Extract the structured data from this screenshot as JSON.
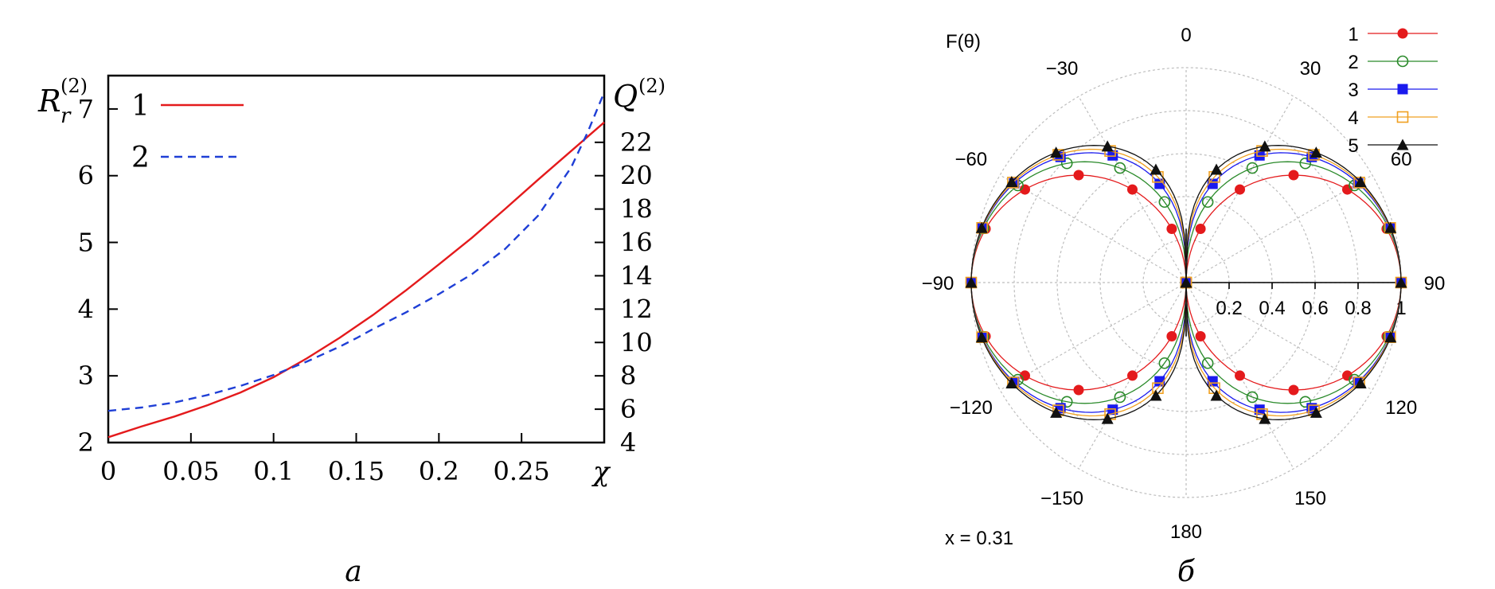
{
  "chart_data": [
    {
      "type": "line",
      "panel_label": "а",
      "xlabel": "χ",
      "ylabel_left": "R",
      "ylabel_left_sub": "r",
      "ylabel_left_sup": "(2)",
      "ylabel_right": "Q",
      "ylabel_right_sup": "(2)",
      "xlim": [
        0,
        0.3
      ],
      "ylim_left": [
        2,
        7.5
      ],
      "ylim_right": [
        4,
        26
      ],
      "x_ticks": [
        0,
        0.05,
        0.1,
        0.15,
        0.2,
        0.25
      ],
      "x_tick_labels": [
        "0",
        "0.05",
        "0.1",
        "0.15",
        "0.2",
        "0.25"
      ],
      "y_left_ticks": [
        2,
        3,
        4,
        5,
        6,
        7
      ],
      "y_left_tick_labels": [
        "2",
        "3",
        "4",
        "5",
        "6",
        "7"
      ],
      "y_right_ticks": [
        4,
        6,
        8,
        10,
        12,
        14,
        16,
        18,
        20,
        22
      ],
      "y_right_tick_labels": [
        "4",
        "6",
        "8",
        "10",
        "12",
        "14",
        "16",
        "18",
        "20",
        "22"
      ],
      "legend_position": "top-left",
      "grid": false,
      "series": [
        {
          "name": "1",
          "axis": "left",
          "color": "#e41a1c",
          "style": "solid",
          "x": [
            0,
            0.02,
            0.04,
            0.06,
            0.08,
            0.1,
            0.12,
            0.14,
            0.16,
            0.18,
            0.2,
            0.22,
            0.24,
            0.26,
            0.28,
            0.3
          ],
          "y": [
            2.08,
            2.24,
            2.39,
            2.56,
            2.75,
            2.98,
            3.26,
            3.57,
            3.91,
            4.28,
            4.67,
            5.07,
            5.5,
            5.94,
            6.37,
            6.8
          ]
        },
        {
          "name": "2",
          "axis": "right",
          "color": "#1f3fd6",
          "style": "dashed",
          "x": [
            0,
            0.02,
            0.04,
            0.06,
            0.08,
            0.1,
            0.12,
            0.14,
            0.15,
            0.16,
            0.18,
            0.2,
            0.22,
            0.24,
            0.26,
            0.28,
            0.29,
            0.3
          ],
          "y": [
            5.9,
            6.1,
            6.4,
            6.85,
            7.4,
            8.05,
            8.85,
            9.75,
            10.25,
            10.8,
            11.8,
            12.9,
            14.1,
            15.6,
            17.6,
            20.5,
            22.6,
            25.0
          ]
        }
      ]
    },
    {
      "type": "polar",
      "panel_label": "б",
      "ylabel": "F(θ)",
      "annotation": "x = 0.31",
      "radial_range": [
        0,
        1
      ],
      "radial_ticks": [
        0.2,
        0.4,
        0.6,
        0.8,
        1
      ],
      "radial_tick_labels": [
        "0.2",
        "0.4",
        "0.6",
        "0.8",
        "1"
      ],
      "angle_ticks": [
        0,
        30,
        60,
        90,
        120,
        150,
        180,
        -150,
        -120,
        -90,
        -60,
        -30
      ],
      "angle_tick_labels": [
        "0",
        "30",
        "60",
        "90",
        "120",
        "150",
        "180",
        "−150",
        "−120",
        "−90",
        "−60",
        "−30"
      ],
      "angle_direction": "clockwise, 0 at top",
      "grid": true,
      "legend_position": "top-right",
      "series": [
        {
          "name": "1",
          "color": "#e41a1c",
          "marker": "filled-circle",
          "max": 1,
          "exponent": 1
        },
        {
          "name": "2",
          "color": "#2a8a2a",
          "marker": "open-circle",
          "max": 1,
          "exponent": 0.7
        },
        {
          "name": "3",
          "color": "#1a1aee",
          "marker": "filled-square",
          "max": 1,
          "exponent": 0.55
        },
        {
          "name": "4",
          "color": "#f0a020",
          "marker": "open-square",
          "max": 1,
          "exponent": 0.5
        },
        {
          "name": "5",
          "color": "#111111",
          "marker": "filled-triangle",
          "max": 1,
          "exponent": 0.45
        }
      ]
    }
  ]
}
